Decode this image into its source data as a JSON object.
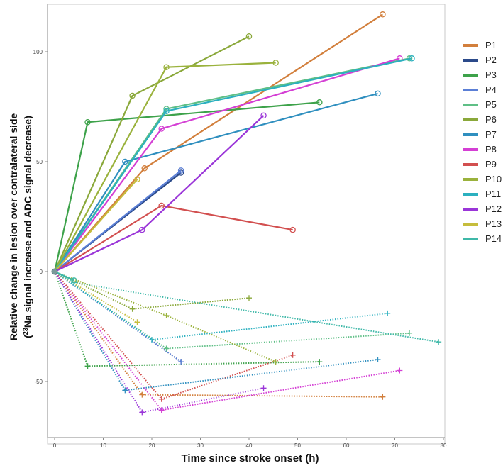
{
  "chart_data": {
    "type": "line",
    "title": "",
    "xlabel": "Time since stroke onset (h)",
    "ylabel_line1": "Relative change in lesion over contralateral side",
    "ylabel_line2_prefix": "(",
    "ylabel_sup": "23",
    "ylabel_line2_suffix": "Na signal increase and ADC signal decrease)",
    "xlim": [
      0,
      80
    ],
    "ylim": [
      -68,
      120
    ],
    "xticks": [
      0,
      10,
      20,
      30,
      40,
      50,
      60,
      70,
      80
    ],
    "yticks": [
      -50,
      0,
      50,
      100
    ],
    "series": [
      {
        "name": "P1",
        "color": "#d27f3c",
        "na": [
          [
            0,
            0
          ],
          [
            18.5,
            47
          ],
          [
            67.5,
            117
          ]
        ],
        "adc": [
          [
            0,
            0
          ],
          [
            18,
            -56
          ],
          [
            67.5,
            -57
          ]
        ]
      },
      {
        "name": "P2",
        "color": "#2b4a8a",
        "na": [
          [
            0,
            0
          ],
          [
            26,
            45
          ]
        ],
        "adc": [
          [
            0,
            0
          ],
          [
            26,
            -41
          ]
        ]
      },
      {
        "name": "P3",
        "color": "#3da24a",
        "na": [
          [
            0,
            0
          ],
          [
            6.8,
            68
          ],
          [
            54.5,
            77
          ]
        ],
        "adc": [
          [
            0,
            0
          ],
          [
            6.8,
            -43
          ],
          [
            54.5,
            -41
          ]
        ]
      },
      {
        "name": "P4",
        "color": "#5b7fd6",
        "na": [
          [
            0,
            0
          ],
          [
            26,
            46
          ]
        ],
        "adc": [
          [
            0,
            0
          ],
          [
            26,
            -41
          ]
        ]
      },
      {
        "name": "P5",
        "color": "#5fbf86",
        "na": [
          [
            0,
            0
          ],
          [
            23,
            74
          ],
          [
            73,
            97
          ]
        ],
        "adc": [
          [
            0,
            0
          ],
          [
            23,
            -35
          ],
          [
            73,
            -28
          ]
        ]
      },
      {
        "name": "P6",
        "color": "#8aa83a",
        "na": [
          [
            0,
            0
          ],
          [
            16,
            80
          ],
          [
            40,
            107
          ]
        ],
        "adc": [
          [
            0,
            0
          ],
          [
            16,
            -17
          ],
          [
            40,
            -12
          ]
        ]
      },
      {
        "name": "P7",
        "color": "#2f8fbf",
        "na": [
          [
            0,
            0
          ],
          [
            14.5,
            50
          ],
          [
            66.5,
            81
          ]
        ],
        "adc": [
          [
            0,
            0
          ],
          [
            14.5,
            -54
          ],
          [
            66.5,
            -40
          ]
        ]
      },
      {
        "name": "P8",
        "color": "#d43fd4",
        "na": [
          [
            0,
            0
          ],
          [
            22,
            65
          ],
          [
            71,
            97
          ]
        ],
        "adc": [
          [
            0,
            0
          ],
          [
            22,
            -63
          ],
          [
            71,
            -45
          ]
        ]
      },
      {
        "name": "P9",
        "color": "#d24f4f",
        "na": [
          [
            0,
            0
          ],
          [
            22,
            30
          ],
          [
            49,
            19
          ]
        ],
        "adc": [
          [
            0,
            0
          ],
          [
            22,
            -58
          ],
          [
            49,
            -38
          ]
        ]
      },
      {
        "name": "P10",
        "color": "#9ab23c",
        "na": [
          [
            0,
            0
          ],
          [
            23,
            93
          ],
          [
            45.5,
            95
          ]
        ],
        "adc": [
          [
            0,
            0
          ],
          [
            23,
            -20
          ],
          [
            45.5,
            -41
          ]
        ]
      },
      {
        "name": "P11",
        "color": "#2bb0bf",
        "na": [
          [
            0,
            0
          ],
          [
            23,
            73
          ],
          [
            73.5,
            97
          ]
        ],
        "adc": [
          [
            0,
            0
          ],
          [
            20,
            -31
          ],
          [
            68.5,
            -19
          ]
        ]
      },
      {
        "name": "P12",
        "color": "#9a35d8",
        "na": [
          [
            0,
            0
          ],
          [
            18,
            19
          ],
          [
            43,
            71
          ]
        ],
        "adc": [
          [
            0,
            0
          ],
          [
            18,
            -64
          ],
          [
            43,
            -53
          ]
        ]
      },
      {
        "name": "P13",
        "color": "#c6bd3c",
        "na": [
          [
            0,
            0
          ],
          [
            17,
            42
          ]
        ],
        "adc": [
          [
            0,
            0
          ],
          [
            17,
            -23
          ]
        ]
      },
      {
        "name": "P14",
        "color": "#3fb8a8",
        "na": [
          [
            0,
            0
          ],
          [
            4,
            -4
          ]
        ],
        "adc": [
          [
            0,
            0
          ],
          [
            4,
            -5
          ],
          [
            79,
            -32
          ]
        ]
      }
    ]
  }
}
